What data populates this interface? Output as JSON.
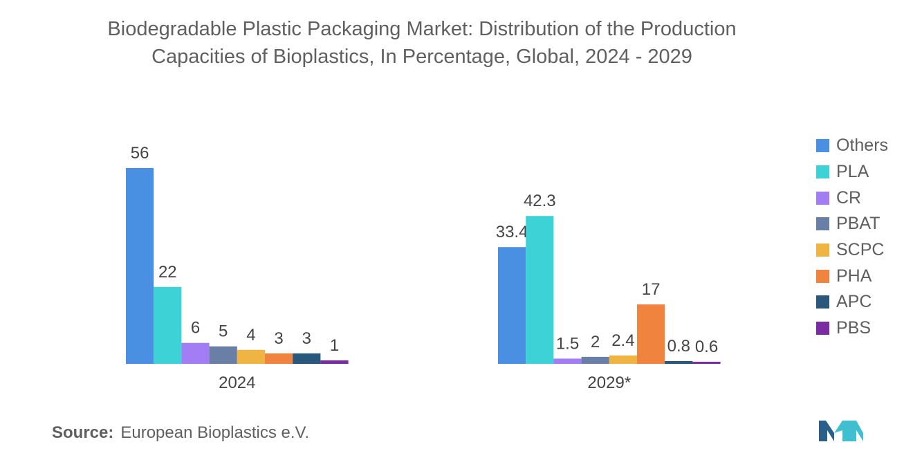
{
  "title": {
    "line1": "Biodegradable Plastic Packaging Market: Distribution of the Production",
    "line2": "Capacities of Bioplastics, In Percentage, Global, 2024 - 2029"
  },
  "chart_data": {
    "type": "bar",
    "title": "Biodegradable Plastic Packaging Market: Distribution of the Production Capacities of Bioplastics, In Percentage, Global, 2024 - 2029",
    "xlabel": "",
    "ylabel": "",
    "ylim": [
      0,
      60
    ],
    "grid": false,
    "legend_position": "right",
    "categories": [
      "2024",
      "2029*"
    ],
    "series": [
      {
        "name": "Others",
        "color": "#4a90e2",
        "values": [
          56,
          33.4
        ],
        "labels": [
          "56",
          "33.4"
        ]
      },
      {
        "name": "PLA",
        "color": "#3dd3d6",
        "values": [
          22,
          42.3
        ],
        "labels": [
          "22",
          "42.3"
        ]
      },
      {
        "name": "CR",
        "color": "#a37df4",
        "values": [
          6,
          1.5
        ],
        "labels": [
          "6",
          "1.5"
        ]
      },
      {
        "name": "PBAT",
        "color": "#6a7fa5",
        "values": [
          5,
          2
        ],
        "labels": [
          "5",
          "2"
        ]
      },
      {
        "name": "SCPC",
        "color": "#f0b443",
        "values": [
          4,
          2.4
        ],
        "labels": [
          "4",
          "2.4"
        ]
      },
      {
        "name": "PHA",
        "color": "#f0843f",
        "values": [
          3,
          17
        ],
        "labels": [
          "3",
          "17"
        ]
      },
      {
        "name": "APC",
        "color": "#2a577c",
        "values": [
          3,
          0.8
        ],
        "labels": [
          "3",
          "0.8"
        ]
      },
      {
        "name": "PBS",
        "color": "#7a2ca0",
        "values": [
          1,
          0.6
        ],
        "labels": [
          "1",
          "0.6"
        ]
      }
    ]
  },
  "source": {
    "label": "Source:",
    "text": "European Bioplastics e.V."
  },
  "logo": {
    "icon": "mordor-intelligence-logo-icon",
    "colors": [
      "#2a5f8a",
      "#3fbfcf"
    ]
  }
}
